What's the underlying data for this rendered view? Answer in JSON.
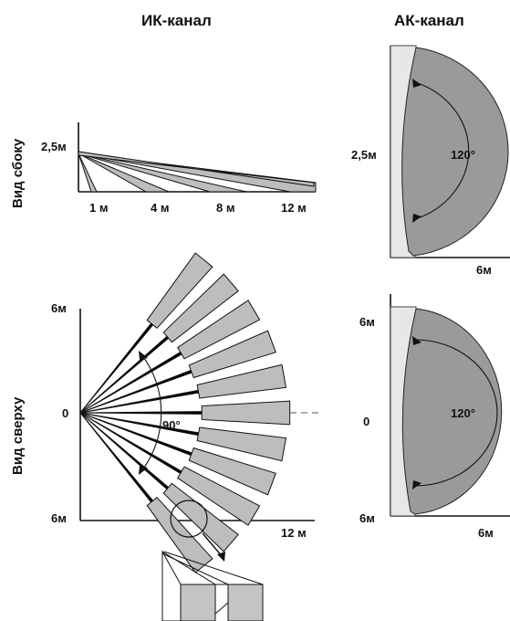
{
  "headers": {
    "ir": "ИК-канал",
    "ak": "АК-канал"
  },
  "row_labels": {
    "side": "Вид сбоку",
    "top": "Вид сверху"
  },
  "ir_side": {
    "height_label": "2,5м",
    "distance_labels": [
      "1 м",
      "4 м",
      "8 м",
      "12 м"
    ]
  },
  "ir_top": {
    "y_top": "6м",
    "y_mid": "0",
    "y_bottom": "6м",
    "x_end": "12 м",
    "angle": "90°"
  },
  "ak_side": {
    "height_label": "2,5м",
    "x_end": "6м",
    "angle": "120°"
  },
  "ak_top": {
    "y_top": "6м",
    "y_mid": "0",
    "y_bottom": "6м",
    "x_end": "6м",
    "angle": "120°"
  },
  "colors": {
    "beam_fill": "#bdbdbd",
    "zone_fill": "#9a9a9a",
    "zone_light": "#e7e7e7"
  }
}
